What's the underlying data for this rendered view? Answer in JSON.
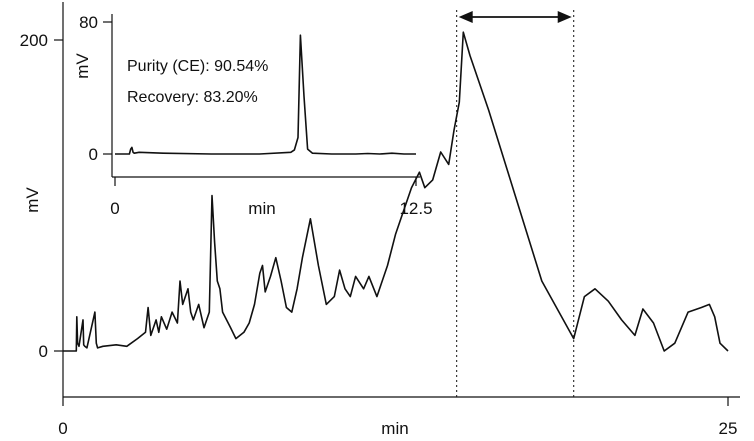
{
  "chart_data": [
    {
      "type": "line",
      "title": "",
      "xlabel": "min",
      "ylabel": "mV",
      "xlim": [
        0,
        25
      ],
      "ylim": [
        -15,
        210
      ],
      "x_ticks": [
        "0",
        "25"
      ],
      "y_ticks": [
        "0",
        "200"
      ],
      "collected_fraction_minutes": [
        14.8,
        19.2
      ],
      "series": [
        {
          "name": "",
          "x": [
            0,
            0.5,
            0.52,
            0.55,
            0.6,
            0.75,
            0.78,
            0.82,
            0.9,
            1.2,
            1.25,
            1.3,
            1.5,
            2.0,
            2.4,
            2.8,
            3.1,
            3.2,
            3.3,
            3.5,
            3.6,
            3.7,
            3.9,
            4.1,
            4.3,
            4.4,
            4.5,
            4.7,
            4.8,
            4.9,
            5.1,
            5.3,
            5.5,
            5.6,
            5.7,
            5.8,
            5.9,
            6.0,
            6.3,
            6.5,
            6.8,
            7.0,
            7.2,
            7.4,
            7.5,
            7.6,
            7.8,
            8.0,
            8.2,
            8.4,
            8.6,
            8.8,
            9.0,
            9.3,
            9.6,
            9.9,
            10.2,
            10.4,
            10.6,
            10.8,
            11.0,
            11.3,
            11.5,
            11.8,
            12.2,
            12.5,
            12.8,
            13.1,
            13.4,
            13.6,
            13.9,
            14.2,
            14.5,
            14.7,
            14.9,
            15.05,
            15.3,
            16.0,
            17.0,
            18.0,
            19.2,
            19.6,
            20.0,
            20.5,
            21.0,
            21.5,
            21.8,
            22.2,
            22.6,
            23.0,
            23.5,
            24.0,
            24.3,
            24.5,
            24.7,
            25.0
          ],
          "values": [
            0,
            0,
            22,
            5,
            3,
            20,
            4,
            3,
            2,
            25,
            5,
            2,
            3,
            4,
            3,
            8,
            12,
            28,
            10,
            20,
            12,
            22,
            14,
            25,
            18,
            45,
            30,
            40,
            25,
            20,
            30,
            15,
            25,
            100,
            70,
            45,
            40,
            25,
            15,
            8,
            12,
            18,
            30,
            50,
            55,
            38,
            48,
            60,
            45,
            28,
            25,
            40,
            60,
            85,
            55,
            30,
            35,
            52,
            40,
            35,
            48,
            40,
            48,
            35,
            55,
            75,
            90,
            105,
            115,
            105,
            110,
            128,
            120,
            142,
            160,
            205,
            190,
            155,
            100,
            45,
            8,
            35,
            40,
            32,
            20,
            10,
            27,
            18,
            0,
            5,
            25,
            28,
            30,
            22,
            5,
            0
          ]
        }
      ]
    },
    {
      "type": "line",
      "title": "",
      "xlabel": "min",
      "ylabel": "mV",
      "xlim": [
        0,
        12.5
      ],
      "ylim": [
        -10,
        80
      ],
      "x_ticks": [
        "0",
        "12.5"
      ],
      "y_ticks": [
        "0",
        "80"
      ],
      "annotations": [
        "Purity (CE): 90.54%",
        "Recovery: 83.20%"
      ],
      "series": [
        {
          "name": "",
          "x": [
            0,
            0.6,
            0.65,
            0.7,
            0.75,
            0.8,
            1.0,
            2.0,
            4.0,
            6.0,
            7.3,
            7.45,
            7.6,
            7.7,
            7.85,
            8.0,
            8.2,
            9.0,
            10.0,
            10.5,
            11.0,
            11.5,
            12.0,
            12.5
          ],
          "values": [
            0,
            0,
            3,
            4,
            1,
            0.5,
            1,
            0.5,
            0,
            0,
            1,
            2.5,
            10,
            72,
            35,
            3,
            0.5,
            0,
            0,
            0.3,
            0,
            0.5,
            0,
            0
          ]
        }
      ]
    }
  ]
}
